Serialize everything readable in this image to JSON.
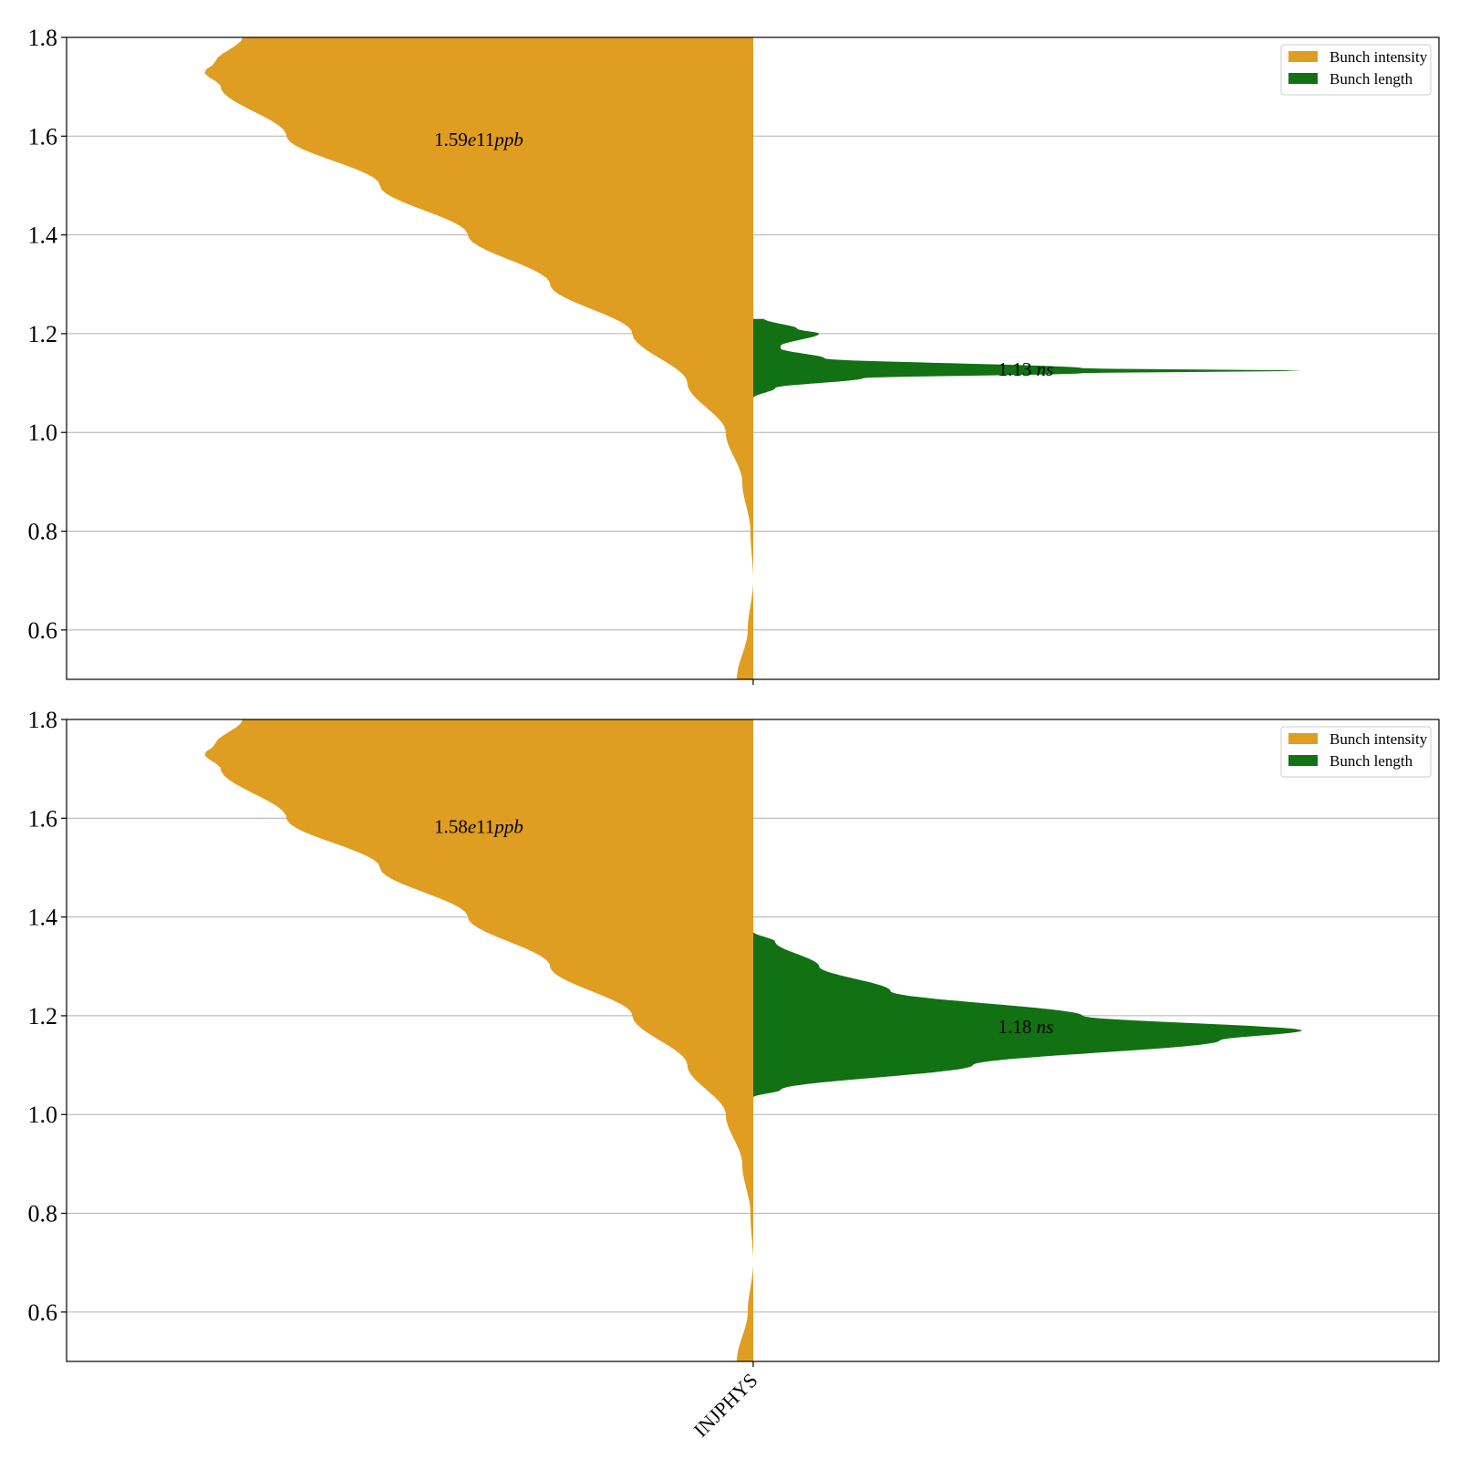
{
  "colors": {
    "intensity": "#df9d22",
    "length": "#117113",
    "grid": "#b0b0b0",
    "axis": "#000000"
  },
  "x_category": "INJPHYS",
  "legend": {
    "items": [
      "Bunch intensity",
      "Bunch length"
    ],
    "placement": "top-right"
  },
  "chart_data": [
    {
      "type": "violin",
      "category": "INJPHYS",
      "ylim": [
        0.5,
        1.8
      ],
      "yticks": [
        0.6,
        0.8,
        1.0,
        1.2,
        1.4,
        1.6,
        1.8
      ],
      "grid": true,
      "series": [
        {
          "name": "Bunch intensity",
          "side": "left",
          "annotation": {
            "value": "1.59",
            "exp": "e11",
            "unit": "ppb"
          },
          "density_profile": [
            [
              0.5,
              0.03
            ],
            [
              0.6,
              0.01
            ],
            [
              0.7,
              0.0
            ],
            [
              0.8,
              0.005
            ],
            [
              0.9,
              0.02
            ],
            [
              1.0,
              0.05
            ],
            [
              1.1,
              0.12
            ],
            [
              1.2,
              0.22
            ],
            [
              1.3,
              0.37
            ],
            [
              1.4,
              0.52
            ],
            [
              1.5,
              0.68
            ],
            [
              1.6,
              0.85
            ],
            [
              1.7,
              0.97
            ],
            [
              1.73,
              1.0
            ],
            [
              1.75,
              0.98
            ],
            [
              1.8,
              0.93
            ]
          ]
        },
        {
          "name": "Bunch length",
          "side": "right",
          "annotation": {
            "value": "1.13",
            "exp": "",
            "unit": "ns"
          },
          "density_profile": [
            [
              1.07,
              0.0
            ],
            [
              1.09,
              0.04
            ],
            [
              1.11,
              0.2
            ],
            [
              1.12,
              0.6
            ],
            [
              1.125,
              1.0
            ],
            [
              1.13,
              0.6
            ],
            [
              1.15,
              0.13
            ],
            [
              1.17,
              0.05
            ],
            [
              1.175,
              0.05
            ],
            [
              1.2,
              0.12
            ],
            [
              1.21,
              0.08
            ],
            [
              1.23,
              0.02
            ]
          ]
        }
      ]
    },
    {
      "type": "violin",
      "category": "INJPHYS",
      "ylim": [
        0.5,
        1.8
      ],
      "yticks": [
        0.6,
        0.8,
        1.0,
        1.2,
        1.4,
        1.6,
        1.8
      ],
      "grid": true,
      "series": [
        {
          "name": "Bunch intensity",
          "side": "left",
          "annotation": {
            "value": "1.58",
            "exp": "e11",
            "unit": "ppb"
          },
          "density_profile": [
            [
              0.5,
              0.03
            ],
            [
              0.6,
              0.01
            ],
            [
              0.7,
              0.0
            ],
            [
              0.8,
              0.005
            ],
            [
              0.9,
              0.02
            ],
            [
              1.0,
              0.05
            ],
            [
              1.1,
              0.12
            ],
            [
              1.2,
              0.22
            ],
            [
              1.3,
              0.37
            ],
            [
              1.4,
              0.52
            ],
            [
              1.5,
              0.68
            ],
            [
              1.6,
              0.85
            ],
            [
              1.7,
              0.97
            ],
            [
              1.73,
              1.0
            ],
            [
              1.75,
              0.98
            ],
            [
              1.8,
              0.93
            ]
          ]
        },
        {
          "name": "Bunch length",
          "side": "right",
          "annotation": {
            "value": "1.18",
            "exp": "",
            "unit": "ns"
          },
          "density_profile": [
            [
              1.035,
              0.0
            ],
            [
              1.05,
              0.05
            ],
            [
              1.1,
              0.4
            ],
            [
              1.15,
              0.85
            ],
            [
              1.17,
              1.0
            ],
            [
              1.2,
              0.6
            ],
            [
              1.25,
              0.25
            ],
            [
              1.3,
              0.12
            ],
            [
              1.35,
              0.04
            ],
            [
              1.37,
              0.0
            ]
          ]
        }
      ]
    }
  ]
}
